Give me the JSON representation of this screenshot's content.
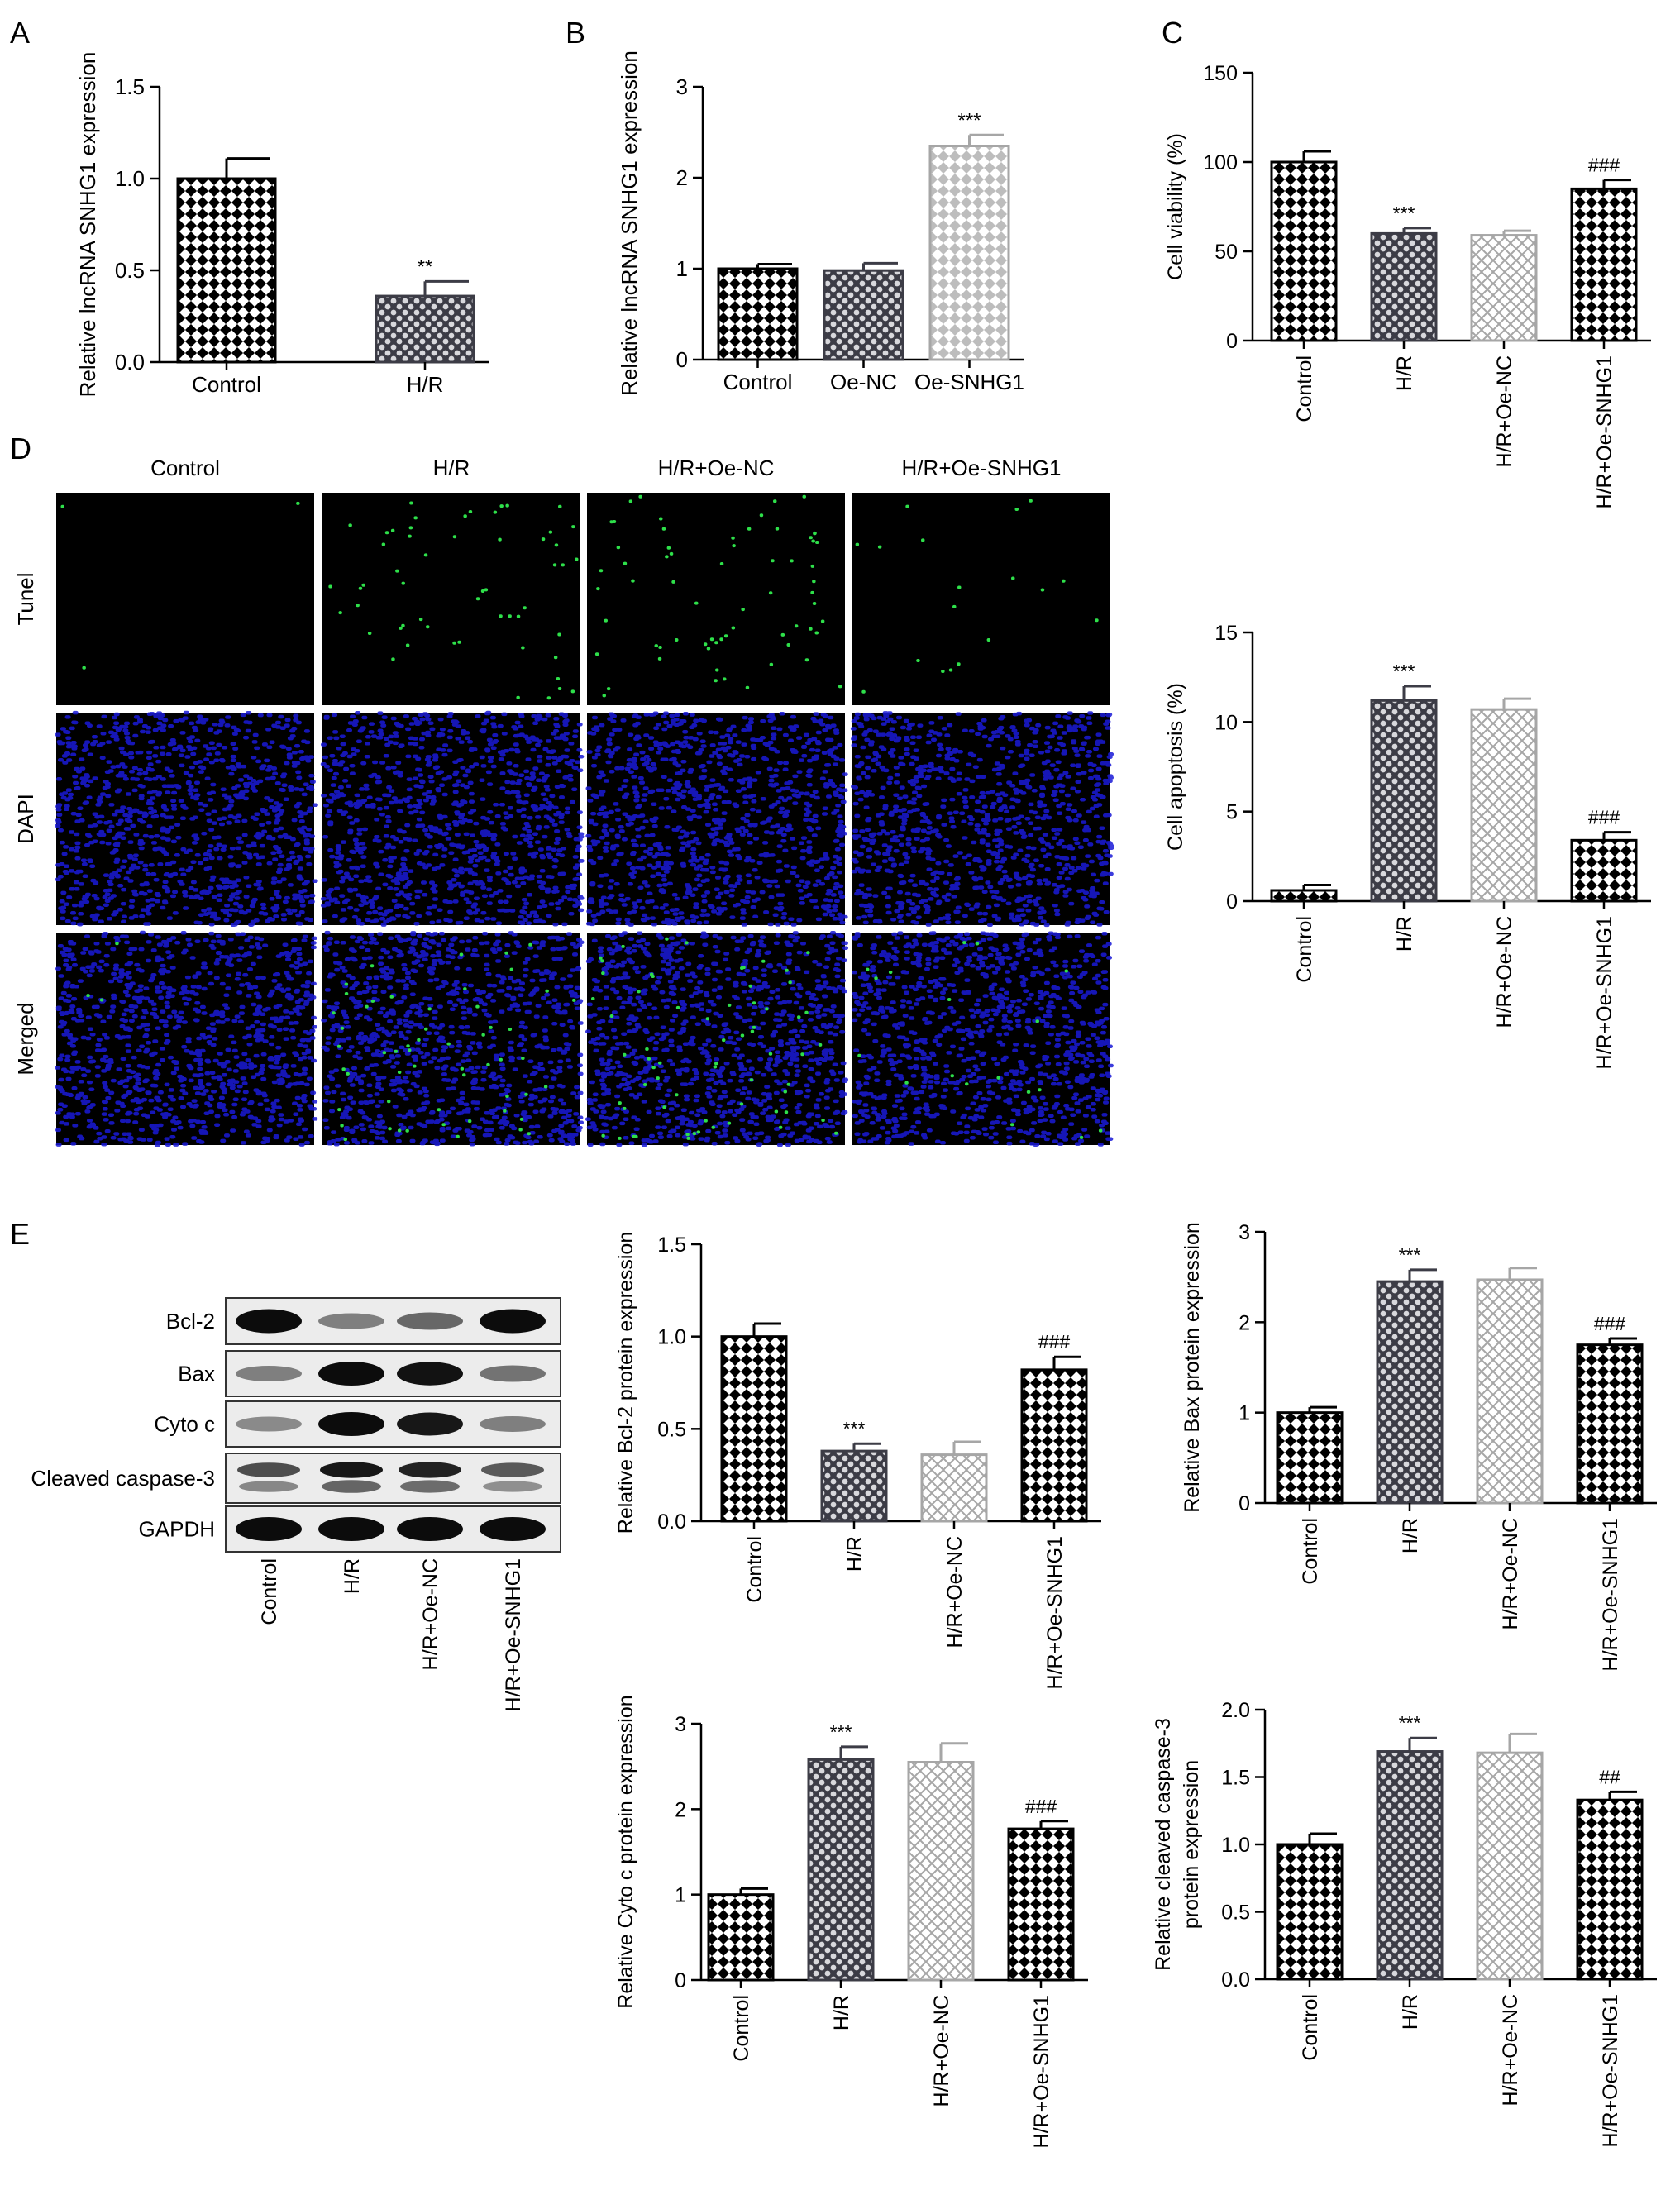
{
  "panel_letters": [
    "A",
    "B",
    "C",
    "D",
    "E"
  ],
  "colors": {
    "control": "#000000",
    "hr": "#3c3c46",
    "oenc": "#a6a6a6",
    "oesnhg1": "#000000",
    "oe_snhg1_b": "#a6a6a6"
  },
  "chart_data": [
    {
      "id": "A",
      "type": "bar",
      "ylabel": "Relative lncRNA SNHG1 expression",
      "categories": [
        "Control",
        "H/R"
      ],
      "values": [
        1.0,
        0.36
      ],
      "errors": [
        0.11,
        0.08
      ],
      "annotations": [
        "",
        "**"
      ],
      "ylim": [
        0,
        1.5
      ],
      "yticks": [
        "0.0",
        "0.5",
        "1.0",
        "1.5"
      ],
      "rotate": false,
      "grid": false
    },
    {
      "id": "B",
      "type": "bar",
      "ylabel": "Relative lncRNA SNHG1 expression",
      "categories": [
        "Control",
        "Oe-NC",
        "Oe-SNHG1"
      ],
      "values": [
        1.0,
        0.98,
        2.35
      ],
      "errors": [
        0.05,
        0.08,
        0.12
      ],
      "annotations": [
        "",
        "",
        "***"
      ],
      "ylim": [
        0,
        3
      ],
      "yticks": [
        "0",
        "1",
        "2",
        "3"
      ],
      "rotate": false,
      "grid": false
    },
    {
      "id": "C",
      "type": "bar",
      "ylabel": "Cell viability (%)",
      "categories": [
        "Control",
        "H/R",
        "H/R+Oe-NC",
        "H/R+Oe-SNHG1"
      ],
      "values": [
        100,
        60,
        59,
        85
      ],
      "errors": [
        6,
        3,
        2.5,
        5
      ],
      "annotations": [
        "",
        "***",
        "",
        "###"
      ],
      "ylim": [
        0,
        150
      ],
      "yticks": [
        "0",
        "50",
        "100",
        "150"
      ],
      "rotate": true,
      "grid": false
    },
    {
      "id": "D2",
      "type": "bar",
      "ylabel": "Cell apoptosis (%)",
      "categories": [
        "Control",
        "H/R",
        "H/R+Oe-NC",
        "H/R+Oe-SNHG1"
      ],
      "values": [
        0.6,
        11.2,
        10.7,
        3.4
      ],
      "errors": [
        0.3,
        0.8,
        0.6,
        0.45
      ],
      "annotations": [
        "",
        "***",
        "",
        "###"
      ],
      "ylim": [
        0,
        15
      ],
      "yticks": [
        "0",
        "5",
        "10",
        "15"
      ],
      "rotate": true,
      "grid": false
    },
    {
      "id": "E1",
      "type": "bar",
      "ylabel": "Relative Bcl-2 protein expression",
      "categories": [
        "Control",
        "H/R",
        "H/R+Oe-NC",
        "H/R+Oe-SNHG1"
      ],
      "values": [
        1.0,
        0.38,
        0.36,
        0.82
      ],
      "errors": [
        0.07,
        0.04,
        0.07,
        0.07
      ],
      "annotations": [
        "",
        "***",
        "",
        "###"
      ],
      "ylim": [
        0,
        1.5
      ],
      "yticks": [
        "0.0",
        "0.5",
        "1.0",
        "1.5"
      ],
      "rotate": true,
      "grid": false
    },
    {
      "id": "E2",
      "type": "bar",
      "ylabel": "Relative Bax protein expression",
      "categories": [
        "Control",
        "H/R",
        "H/R+Oe-NC",
        "H/R+Oe-SNHG1"
      ],
      "values": [
        1.0,
        2.45,
        2.47,
        1.75
      ],
      "errors": [
        0.06,
        0.13,
        0.13,
        0.07
      ],
      "annotations": [
        "",
        "***",
        "",
        "###"
      ],
      "ylim": [
        0,
        3
      ],
      "yticks": [
        "0",
        "1",
        "2",
        "3"
      ],
      "rotate": true,
      "grid": false
    },
    {
      "id": "E3",
      "type": "bar",
      "ylabel": "Relative Cyto c protein expression",
      "categories": [
        "Control",
        "H/R",
        "H/R+Oe-NC",
        "H/R+Oe-SNHG1"
      ],
      "values": [
        1.0,
        2.58,
        2.55,
        1.77
      ],
      "errors": [
        0.07,
        0.15,
        0.22,
        0.09
      ],
      "annotations": [
        "",
        "***",
        "",
        "###"
      ],
      "ylim": [
        0,
        3
      ],
      "yticks": [
        "0",
        "1",
        "2",
        "3"
      ],
      "rotate": true,
      "grid": false
    },
    {
      "id": "E4",
      "type": "bar",
      "ylabel": "Relative cleaved caspase-3|protein expression",
      "categories": [
        "Control",
        "H/R",
        "H/R+Oe-NC",
        "H/R+Oe-SNHG1"
      ],
      "values": [
        1.0,
        1.69,
        1.68,
        1.33
      ],
      "errors": [
        0.08,
        0.1,
        0.14,
        0.06
      ],
      "annotations": [
        "",
        "***",
        "",
        "##"
      ],
      "ylim": [
        0,
        2.0
      ],
      "yticks": [
        "0.0",
        "0.5",
        "1.0",
        "1.5",
        "2.0"
      ],
      "rotate": true,
      "grid": false
    }
  ],
  "microscopy": {
    "columns": [
      "Control",
      "H/R",
      "H/R+Oe-NC",
      "H/R+Oe-SNHG1"
    ],
    "rows": [
      "Tunel",
      "DAPI",
      "Merged"
    ]
  },
  "western_blot": {
    "proteins": [
      "Bcl-2",
      "Bax",
      "Cyto c",
      "Cleaved caspase-3",
      "GAPDH"
    ],
    "lanes": [
      "Control",
      "H/R",
      "H/R+Oe-NC",
      "H/R+Oe-SNHG1"
    ],
    "band_intensity": [
      [
        0.95,
        0.45,
        0.55,
        0.95
      ],
      [
        0.45,
        0.95,
        0.92,
        0.5
      ],
      [
        0.4,
        0.95,
        0.9,
        0.45
      ],
      [
        0.7,
        0.95,
        0.9,
        0.65
      ],
      [
        0.95,
        0.95,
        0.95,
        0.95
      ]
    ]
  }
}
